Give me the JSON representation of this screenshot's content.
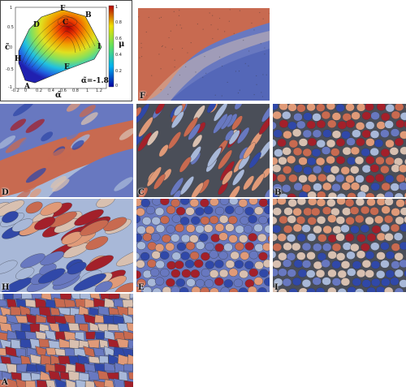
{
  "diagram": {
    "point_labels": {
      "A": "A",
      "B": "B",
      "C": "C",
      "D": "D",
      "E": "E",
      "F": "F",
      "H": "H",
      "I": "I"
    },
    "axis_x_label": "α̃",
    "axis_y_label": "c̃",
    "colorbar_label": "μ",
    "x_ticks": [
      "-0.2",
      "0",
      "0.2",
      "0.4",
      "0.6",
      "0.8",
      "1",
      "1.2"
    ],
    "y_ticks": [
      "1",
      "0.5",
      "0",
      "-0.5",
      "-1"
    ],
    "colorbar_ticks": [
      "1",
      "0.8",
      "0.6",
      "0.4",
      "0.2",
      "0"
    ],
    "annotation": "α̃=-1.8",
    "colors": {
      "high": "#b40000",
      "mid": "#f0e000",
      "low": "#0000c0"
    }
  },
  "panels": [
    {
      "id": "F",
      "label": "F"
    },
    {
      "id": "D",
      "label": "D"
    },
    {
      "id": "C",
      "label": "C"
    },
    {
      "id": "B",
      "label": "B"
    },
    {
      "id": "H",
      "label": "H"
    },
    {
      "id": "E",
      "label": "E"
    },
    {
      "id": "I",
      "label": "I"
    },
    {
      "id": "A",
      "label": "A"
    }
  ],
  "palette": {
    "dark_red": "#a3202a",
    "red": "#c86a50",
    "salmon": "#e09a78",
    "beige": "#d8c0b0",
    "light_blue": "#a8b8d8",
    "blue": "#6878c0",
    "dark_blue": "#3048a8",
    "gap": "#4a4e58"
  }
}
